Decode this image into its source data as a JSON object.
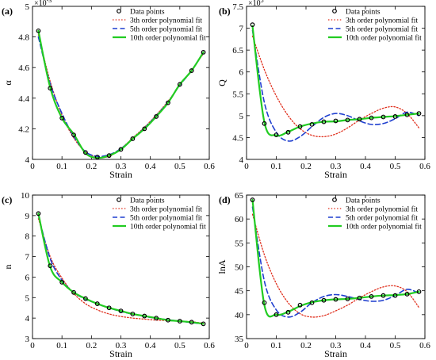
{
  "colors": {
    "data_points": "#000000",
    "fit3": "#e0301e",
    "fit5": "#1f3fcf",
    "fit10": "#22cc22"
  },
  "chart_data": [
    {
      "type": "line",
      "panel_label": "(a)",
      "xlabel": "Strain",
      "ylabel": "α",
      "xlim": [
        0,
        0.6
      ],
      "ylim": [
        4.0,
        5.0
      ],
      "x_ticks": [
        0,
        0.1,
        0.2,
        0.3,
        0.4,
        0.5,
        0.6
      ],
      "y_ticks": [
        4.0,
        4.2,
        4.4,
        4.6,
        4.8,
        5.0
      ],
      "x_tick_labels": [
        "0",
        "0.1",
        "0.2",
        "0.3",
        "0.4",
        "0.5",
        "0.6"
      ],
      "y_tick_labels": [
        "4",
        "4.2",
        "4.4",
        "4.6",
        "4.8",
        "5"
      ],
      "y_multiplier": "×10",
      "y_multiplier_exp": "-3",
      "legend_position": "top-right",
      "legend": [
        "Data points",
        "3th order polynomial fit",
        "5th order polynomial fit",
        "10th order polynomial fit"
      ],
      "x": [
        0.02,
        0.06,
        0.1,
        0.14,
        0.18,
        0.22,
        0.26,
        0.3,
        0.34,
        0.38,
        0.42,
        0.46,
        0.5,
        0.54,
        0.58
      ],
      "series": [
        {
          "name": "Data points",
          "values": [
            4.84,
            4.465,
            4.27,
            4.16,
            4.045,
            4.015,
            4.025,
            4.065,
            4.135,
            4.2,
            4.28,
            4.37,
            4.49,
            4.58,
            4.7
          ]
        },
        {
          "name": "3th order polynomial fit",
          "values": [
            4.815,
            4.51,
            4.29,
            4.14,
            4.05,
            4.015,
            4.02,
            4.07,
            4.14,
            4.21,
            4.29,
            4.38,
            4.485,
            4.585,
            4.69
          ]
        },
        {
          "name": "5th order polynomial fit",
          "values": [
            4.8,
            4.495,
            4.3,
            4.15,
            4.05,
            4.02,
            4.03,
            4.07,
            4.135,
            4.205,
            4.285,
            4.375,
            4.485,
            4.58,
            4.7
          ]
        },
        {
          "name": "10th order polynomial fit",
          "values": [
            4.84,
            4.47,
            4.27,
            4.165,
            4.04,
            4.01,
            4.025,
            4.065,
            4.135,
            4.2,
            4.28,
            4.37,
            4.49,
            4.58,
            4.7
          ]
        }
      ]
    },
    {
      "type": "line",
      "panel_label": "(b)",
      "xlabel": "Strain",
      "ylabel": "Q",
      "xlim": [
        0,
        0.6
      ],
      "ylim": [
        4.0,
        7.5
      ],
      "x_ticks": [
        0,
        0.1,
        0.2,
        0.3,
        0.4,
        0.5,
        0.6
      ],
      "y_ticks": [
        4.0,
        4.5,
        5.0,
        5.5,
        6.0,
        6.5,
        7.0,
        7.5
      ],
      "x_tick_labels": [
        "0",
        "0.1",
        "0.2",
        "0.3",
        "0.4",
        "0.5",
        "0.6"
      ],
      "y_tick_labels": [
        "4",
        "4.5",
        "5",
        "5.5",
        "6",
        "6.5",
        "7",
        "7.5"
      ],
      "y_multiplier": "×10",
      "y_multiplier_exp": "5",
      "legend_position": "top-right",
      "legend": [
        "Data points",
        "3th order polynomial fit",
        "5th order polynomial fit",
        "10th order polynomial fit"
      ],
      "x": [
        0.02,
        0.06,
        0.1,
        0.14,
        0.18,
        0.22,
        0.26,
        0.3,
        0.34,
        0.38,
        0.42,
        0.46,
        0.5,
        0.54,
        0.58
      ],
      "series": [
        {
          "name": "Data points",
          "values": [
            7.08,
            4.82,
            4.56,
            4.62,
            4.75,
            4.8,
            4.86,
            4.88,
            4.9,
            4.92,
            4.95,
            4.97,
            4.98,
            5.02,
            5.05
          ]
        },
        {
          "name": "3th order polynomial fit",
          "values": [
            6.82,
            6.05,
            5.45,
            5.0,
            4.7,
            4.55,
            4.52,
            4.58,
            4.72,
            4.9,
            5.05,
            5.17,
            5.2,
            5.05,
            4.72
          ]
        },
        {
          "name": "5th order polynomial fit",
          "values": [
            6.95,
            5.3,
            4.62,
            4.42,
            4.52,
            4.75,
            4.96,
            5.05,
            5.0,
            4.88,
            4.8,
            4.82,
            4.93,
            5.08,
            5.0
          ]
        },
        {
          "name": "10th order polynomial fit",
          "values": [
            7.05,
            4.85,
            4.55,
            4.63,
            4.75,
            4.82,
            4.86,
            4.87,
            4.9,
            4.92,
            4.95,
            4.97,
            4.99,
            5.02,
            5.05
          ]
        }
      ]
    },
    {
      "type": "line",
      "panel_label": "(c)",
      "xlabel": "Strain",
      "ylabel": "n",
      "xlim": [
        0,
        0.6
      ],
      "ylim": [
        3,
        10
      ],
      "x_ticks": [
        0,
        0.1,
        0.2,
        0.3,
        0.4,
        0.5,
        0.6
      ],
      "y_ticks": [
        3,
        4,
        5,
        6,
        7,
        8,
        9,
        10
      ],
      "x_tick_labels": [
        "0",
        "0.1",
        "0.2",
        "0.3",
        "0.4",
        "0.5",
        "0.6"
      ],
      "y_tick_labels": [
        "3",
        "4",
        "5",
        "6",
        "7",
        "8",
        "9",
        "10"
      ],
      "legend_position": "top-right",
      "legend": [
        "Data points",
        "3th order polynomial fit",
        "5th order polynomial fit",
        "10th order polynomial fit"
      ],
      "x": [
        0.02,
        0.06,
        0.1,
        0.14,
        0.18,
        0.22,
        0.26,
        0.3,
        0.34,
        0.38,
        0.42,
        0.46,
        0.5,
        0.54,
        0.58
      ],
      "series": [
        {
          "name": "Data points",
          "values": [
            9.1,
            6.55,
            5.75,
            5.25,
            4.95,
            4.7,
            4.5,
            4.35,
            4.2,
            4.1,
            4.0,
            3.9,
            3.85,
            3.8,
            3.72
          ]
        },
        {
          "name": "3th order polynomial fit",
          "values": [
            8.85,
            7.0,
            5.95,
            5.2,
            4.7,
            4.4,
            4.2,
            4.08,
            4.0,
            3.95,
            3.9,
            3.88,
            3.85,
            3.82,
            3.75
          ]
        },
        {
          "name": "5th order polynomial fit",
          "values": [
            9.0,
            6.9,
            5.85,
            5.25,
            4.92,
            4.7,
            4.5,
            4.32,
            4.2,
            4.08,
            3.99,
            3.92,
            3.85,
            3.78,
            3.72
          ]
        },
        {
          "name": "10th order polynomial fit",
          "values": [
            9.1,
            6.5,
            5.75,
            5.25,
            4.95,
            4.7,
            4.5,
            4.35,
            4.2,
            4.1,
            4.0,
            3.9,
            3.85,
            3.8,
            3.72
          ]
        }
      ]
    },
    {
      "type": "line",
      "panel_label": "(d)",
      "xlabel": "Strain",
      "ylabel": "lnA",
      "xlim": [
        0,
        0.6
      ],
      "ylim": [
        35,
        65
      ],
      "x_ticks": [
        0,
        0.1,
        0.2,
        0.3,
        0.4,
        0.5,
        0.6
      ],
      "y_ticks": [
        35,
        40,
        45,
        50,
        55,
        60,
        65
      ],
      "x_tick_labels": [
        "0",
        "0.1",
        "0.2",
        "0.3",
        "0.4",
        "0.5",
        "0.6"
      ],
      "y_tick_labels": [
        "35",
        "40",
        "45",
        "50",
        "55",
        "60",
        "65"
      ],
      "legend_position": "top-right",
      "legend": [
        "Data points",
        "3th order polynomial fit",
        "5th order polynomial fit",
        "10th order polynomial fit"
      ],
      "x": [
        0.02,
        0.06,
        0.1,
        0.14,
        0.18,
        0.22,
        0.26,
        0.3,
        0.34,
        0.38,
        0.42,
        0.46,
        0.5,
        0.54,
        0.58
      ],
      "series": [
        {
          "name": "Data points",
          "values": [
            64.0,
            42.5,
            40.0,
            40.5,
            42.0,
            42.5,
            43.0,
            43.2,
            43.3,
            43.5,
            43.8,
            44.0,
            44.0,
            44.3,
            44.8
          ]
        },
        {
          "name": "3th order polynomial fit",
          "values": [
            61.0,
            52.5,
            46.5,
            42.5,
            40.2,
            39.5,
            39.8,
            40.8,
            42.0,
            43.5,
            44.8,
            45.8,
            46.0,
            44.8,
            41.5
          ]
        },
        {
          "name": "5th order polynomial fit",
          "values": [
            62.5,
            47.0,
            41.0,
            39.5,
            40.5,
            42.5,
            43.8,
            44.2,
            43.8,
            43.2,
            42.8,
            43.0,
            44.0,
            45.3,
            44.5
          ]
        },
        {
          "name": "10th order polynomial fit",
          "values": [
            64.0,
            42.0,
            40.0,
            40.6,
            41.8,
            42.6,
            43.0,
            43.2,
            43.3,
            43.5,
            43.8,
            44.0,
            44.1,
            44.3,
            44.8
          ]
        }
      ]
    }
  ]
}
